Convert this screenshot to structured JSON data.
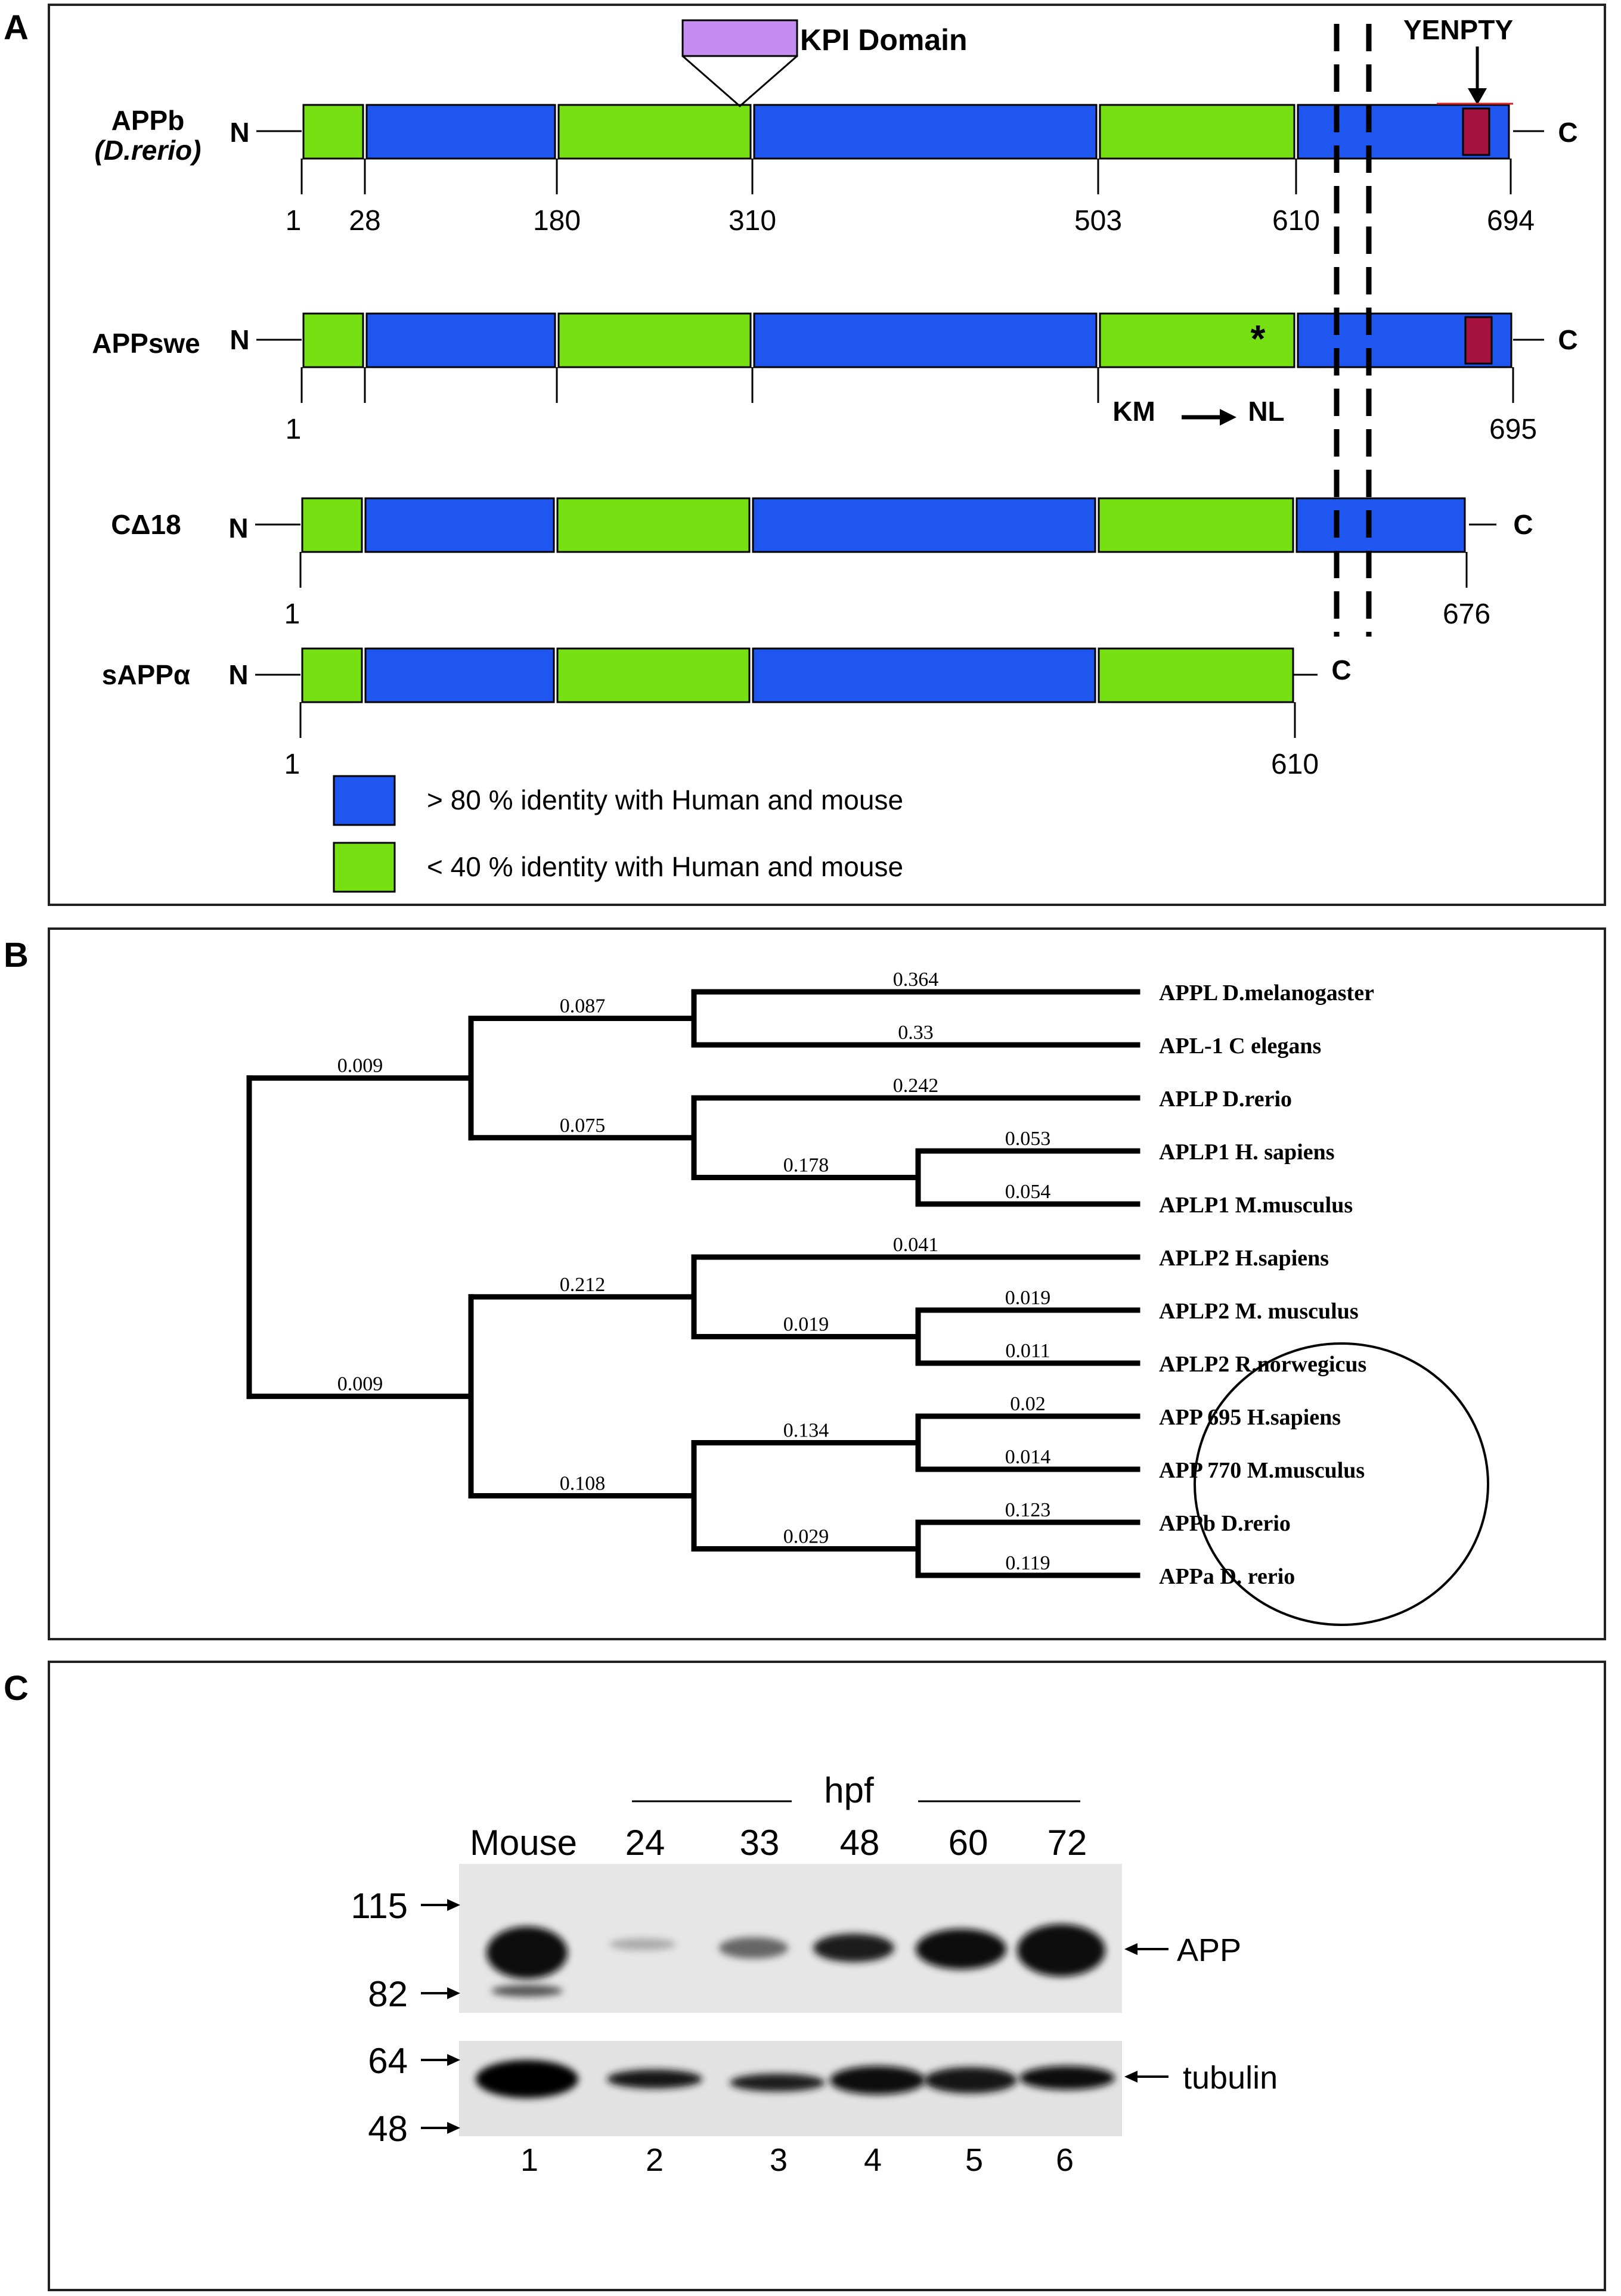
{
  "colors": {
    "blue": "#1f56f0",
    "green": "#77e012",
    "purple": "#c58cf2",
    "crimson": "#a5123f",
    "line": "#000000",
    "border": "#222222"
  },
  "panelA": {
    "letter": "A",
    "kpi_label": "KPI Domain",
    "yenpty_label": "YENPTY",
    "n_label": "N",
    "c_label": "C",
    "mutation": {
      "from": "KM",
      "to": "NL",
      "star": "*"
    },
    "constructs": [
      {
        "name_line1": "APPb",
        "name_line2": "(D.rerio)",
        "length": 694,
        "segments": [
          {
            "from": 1,
            "to": 28,
            "type": "green"
          },
          {
            "from": 28,
            "to": 180,
            "type": "blue"
          },
          {
            "from": 180,
            "to": 310,
            "type": "green"
          },
          {
            "from": 310,
            "to": 503,
            "type": "blue"
          },
          {
            "from": 503,
            "to": 610,
            "type": "green"
          },
          {
            "from": 610,
            "to": 694,
            "type": "blue"
          }
        ],
        "ticks": [
          {
            "pos": 1,
            "label": "1"
          },
          {
            "pos": 28,
            "label": "28"
          },
          {
            "pos": 180,
            "label": "180"
          },
          {
            "pos": 310,
            "label": "310"
          },
          {
            "pos": 503,
            "label": "503"
          },
          {
            "pos": 610,
            "label": "610"
          },
          {
            "pos": 694,
            "label": "694"
          }
        ],
        "yenpty": true,
        "kpi": true
      },
      {
        "name_line1": "APPswe",
        "name_line2": "",
        "length": 695,
        "segments": [
          {
            "from": 1,
            "to": 28,
            "type": "green"
          },
          {
            "from": 28,
            "to": 180,
            "type": "blue"
          },
          {
            "from": 180,
            "to": 310,
            "type": "green"
          },
          {
            "from": 310,
            "to": 503,
            "type": "blue"
          },
          {
            "from": 503,
            "to": 610,
            "type": "green"
          },
          {
            "from": 610,
            "to": 695,
            "type": "blue"
          }
        ],
        "ticks": [
          {
            "pos": 1,
            "label": "1"
          },
          {
            "pos": 28,
            "label": ""
          },
          {
            "pos": 180,
            "label": ""
          },
          {
            "pos": 310,
            "label": ""
          },
          {
            "pos": 503,
            "label": ""
          },
          {
            "pos": 695,
            "label": "695"
          }
        ],
        "yenpty": true,
        "mutation": true
      },
      {
        "name_line1": "CΔ18",
        "name_line2": "",
        "length": 676,
        "segments": [
          {
            "from": 1,
            "to": 28,
            "type": "green"
          },
          {
            "from": 28,
            "to": 180,
            "type": "blue"
          },
          {
            "from": 180,
            "to": 310,
            "type": "green"
          },
          {
            "from": 310,
            "to": 503,
            "type": "blue"
          },
          {
            "from": 503,
            "to": 610,
            "type": "green"
          },
          {
            "from": 610,
            "to": 676,
            "type": "blue"
          }
        ],
        "ticks": [
          {
            "pos": 1,
            "label": "1"
          },
          {
            "pos": 676,
            "label": "676"
          }
        ]
      },
      {
        "name_line1": "sAPPα",
        "name_line2": "",
        "length": 610,
        "segments": [
          {
            "from": 1,
            "to": 28,
            "type": "green"
          },
          {
            "from": 28,
            "to": 180,
            "type": "blue"
          },
          {
            "from": 180,
            "to": 310,
            "type": "green"
          },
          {
            "from": 310,
            "to": 503,
            "type": "blue"
          },
          {
            "from": 503,
            "to": 610,
            "type": "green"
          }
        ],
        "ticks": [
          {
            "pos": 1,
            "label": "1"
          },
          {
            "pos": 610,
            "label": "610"
          }
        ]
      }
    ],
    "legend": [
      {
        "type": "blue",
        "label": "> 80 % identity with Human and mouse"
      },
      {
        "type": "green",
        "label": "< 40 % identity with Human and mouse"
      }
    ]
  },
  "panelB": {
    "letter": "B",
    "tree": {
      "children": [
        {
          "bl": "0.009",
          "children": [
            {
              "bl": "0.087",
              "children": [
                {
                  "bl": "0.364",
                  "leaf": "APPL D.melanogaster"
                },
                {
                  "bl": "0.33",
                  "leaf": "APL-1 C elegans"
                }
              ]
            },
            {
              "bl": "0.075",
              "children": [
                {
                  "bl": "0.242",
                  "leaf": "APLP D.rerio"
                },
                {
                  "bl": "0.178",
                  "children": [
                    {
                      "bl": "0.053",
                      "leaf": "APLP1 H. sapiens"
                    },
                    {
                      "bl": "0.054",
                      "leaf": "APLP1 M.musculus"
                    }
                  ]
                }
              ]
            }
          ]
        },
        {
          "bl": "0.009",
          "children": [
            {
              "bl": "0.212",
              "children": [
                {
                  "bl": "0.041",
                  "leaf": "APLP2 H.sapiens"
                },
                {
                  "bl": "0.019",
                  "children": [
                    {
                      "bl": "0.019",
                      "leaf": "APLP2 M. musculus"
                    },
                    {
                      "bl": "0.011",
                      "leaf": "APLP2 R.norwegicus"
                    }
                  ]
                }
              ]
            },
            {
              "bl": "0.108",
              "children": [
                {
                  "bl": "0.134",
                  "children": [
                    {
                      "bl": "0.02",
                      "leaf": "APP 695 H.sapiens"
                    },
                    {
                      "bl": "0.014",
                      "leaf": "APP 770 M.musculus"
                    }
                  ]
                },
                {
                  "bl": "0.029",
                  "children": [
                    {
                      "bl": "0.123",
                      "leaf": "APPb D.rerio"
                    },
                    {
                      "bl": "0.119",
                      "leaf": "APPa D. rerio"
                    }
                  ]
                }
              ]
            }
          ]
        }
      ]
    }
  },
  "panelC": {
    "letter": "C",
    "hpf_label": "hpf",
    "lane_headers": [
      "Mouse",
      "24",
      "33",
      "48",
      "60",
      "72"
    ],
    "lane_numbers": [
      "1",
      "2",
      "3",
      "4",
      "5",
      "6"
    ],
    "mw_markers": [
      "115",
      "82",
      "64",
      "48"
    ],
    "band_labels": [
      "APP",
      "tubulin"
    ]
  }
}
